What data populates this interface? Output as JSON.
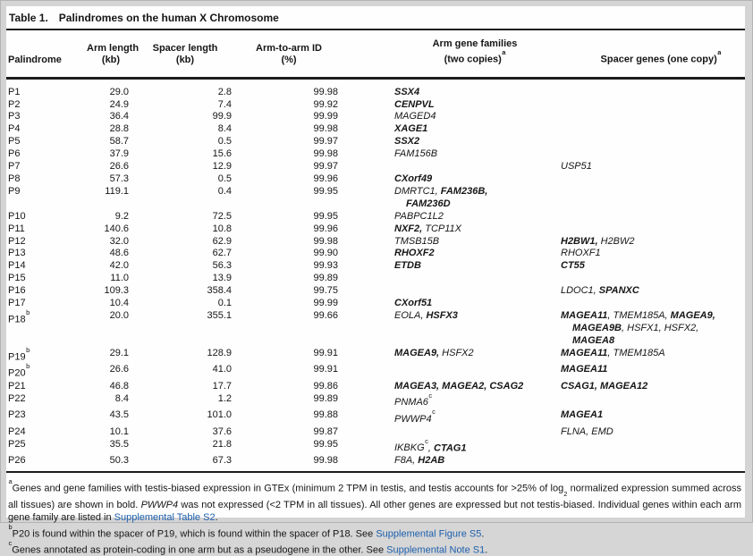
{
  "title": {
    "label": "Table 1.",
    "text": "Palindromes on the human X Chromosome"
  },
  "columns": [
    {
      "id": "palindrome",
      "lines": [
        "Palindrome"
      ],
      "sup": ""
    },
    {
      "id": "arm-length",
      "lines": [
        "Arm length",
        "(kb)"
      ],
      "sup": ""
    },
    {
      "id": "spacer-length",
      "lines": [
        "Spacer length",
        "(kb)"
      ],
      "sup": ""
    },
    {
      "id": "arm-to-arm-id",
      "lines": [
        "Arm-to-arm ID",
        "(%)"
      ],
      "sup": ""
    },
    {
      "id": "arm-gene-families",
      "lines": [
        "Arm gene families",
        "(two copies)"
      ],
      "sup": "a"
    },
    {
      "id": "spacer-genes",
      "lines": [
        "Spacer genes (one copy)"
      ],
      "sup": "a"
    }
  ],
  "rows": [
    {
      "p": "P1",
      "sup": "",
      "arm_kb": "29.0",
      "spacer_kb": "2.8",
      "id_pct": "99.98",
      "arm_genes": [
        [
          {
            "t": "SSX4",
            "b": 1
          }
        ]
      ],
      "spacer_genes": []
    },
    {
      "p": "P2",
      "sup": "",
      "arm_kb": "24.9",
      "spacer_kb": "7.4",
      "id_pct": "99.92",
      "arm_genes": [
        [
          {
            "t": "CENPVL",
            "b": 1
          }
        ]
      ],
      "spacer_genes": []
    },
    {
      "p": "P3",
      "sup": "",
      "arm_kb": "36.4",
      "spacer_kb": "99.9",
      "id_pct": "99.99",
      "arm_genes": [
        [
          {
            "t": "MAGED4"
          }
        ]
      ],
      "spacer_genes": []
    },
    {
      "p": "P4",
      "sup": "",
      "arm_kb": "28.8",
      "spacer_kb": "8.4",
      "id_pct": "99.98",
      "arm_genes": [
        [
          {
            "t": "XAGE1",
            "b": 1
          }
        ]
      ],
      "spacer_genes": []
    },
    {
      "p": "P5",
      "sup": "",
      "arm_kb": "58.7",
      "spacer_kb": "0.5",
      "id_pct": "99.97",
      "arm_genes": [
        [
          {
            "t": "SSX2",
            "b": 1
          }
        ]
      ],
      "spacer_genes": []
    },
    {
      "p": "P6",
      "sup": "",
      "arm_kb": "37.9",
      "spacer_kb": "15.6",
      "id_pct": "99.98",
      "arm_genes": [
        [
          {
            "t": "FAM156B"
          }
        ]
      ],
      "spacer_genes": []
    },
    {
      "p": "P7",
      "sup": "",
      "arm_kb": "26.6",
      "spacer_kb": "12.9",
      "id_pct": "99.97",
      "arm_genes": [],
      "spacer_genes": [
        [
          {
            "t": "USP51"
          }
        ]
      ]
    },
    {
      "p": "P8",
      "sup": "",
      "arm_kb": "57.3",
      "spacer_kb": "0.5",
      "id_pct": "99.96",
      "arm_genes": [
        [
          {
            "t": "CXorf49",
            "b": 1
          }
        ]
      ],
      "spacer_genes": []
    },
    {
      "p": "P9",
      "sup": "",
      "arm_kb": "119.1",
      "spacer_kb": "0.4",
      "id_pct": "99.95",
      "arm_genes": [
        [
          {
            "t": "DMRTC1, "
          },
          {
            "t": "FAM236B,",
            "b": 1
          }
        ],
        [
          {
            "t": "FAM236D",
            "b": 1
          }
        ]
      ],
      "spacer_genes": []
    },
    {
      "p": "P10",
      "sup": "",
      "arm_kb": "9.2",
      "spacer_kb": "72.5",
      "id_pct": "99.95",
      "arm_genes": [
        [
          {
            "t": "PABPC1L2"
          }
        ]
      ],
      "spacer_genes": []
    },
    {
      "p": "P11",
      "sup": "",
      "arm_kb": "140.6",
      "spacer_kb": "10.8",
      "id_pct": "99.96",
      "arm_genes": [
        [
          {
            "t": "NXF2, ",
            "b": 1
          },
          {
            "t": "TCP11X"
          }
        ]
      ],
      "spacer_genes": []
    },
    {
      "p": "P12",
      "sup": "",
      "arm_kb": "32.0",
      "spacer_kb": "62.9",
      "id_pct": "99.98",
      "arm_genes": [
        [
          {
            "t": "TMSB15B"
          }
        ]
      ],
      "spacer_genes": [
        [
          {
            "t": "H2BW1, ",
            "b": 1
          },
          {
            "t": "H2BW2"
          }
        ]
      ]
    },
    {
      "p": "P13",
      "sup": "",
      "arm_kb": "48.6",
      "spacer_kb": "62.7",
      "id_pct": "99.90",
      "arm_genes": [
        [
          {
            "t": "RHOXF2",
            "b": 1
          }
        ]
      ],
      "spacer_genes": [
        [
          {
            "t": "RHOXF1"
          }
        ]
      ]
    },
    {
      "p": "P14",
      "sup": "",
      "arm_kb": "42.0",
      "spacer_kb": "56.3",
      "id_pct": "99.93",
      "arm_genes": [
        [
          {
            "t": "ETDB",
            "b": 1
          }
        ]
      ],
      "spacer_genes": [
        [
          {
            "t": "CT55",
            "b": 1
          }
        ]
      ]
    },
    {
      "p": "P15",
      "sup": "",
      "arm_kb": "11.0",
      "spacer_kb": "13.9",
      "id_pct": "99.89",
      "arm_genes": [],
      "spacer_genes": []
    },
    {
      "p": "P16",
      "sup": "",
      "arm_kb": "109.3",
      "spacer_kb": "358.4",
      "id_pct": "99.75",
      "arm_genes": [],
      "spacer_genes": [
        [
          {
            "t": "LDOC1, "
          },
          {
            "t": "SPANXC",
            "b": 1
          }
        ]
      ]
    },
    {
      "p": "P17",
      "sup": "",
      "arm_kb": "10.4",
      "spacer_kb": "0.1",
      "id_pct": "99.99",
      "arm_genes": [
        [
          {
            "t": "CXorf51",
            "b": 1
          }
        ]
      ],
      "spacer_genes": []
    },
    {
      "p": "P18",
      "sup": "b",
      "arm_kb": "20.0",
      "spacer_kb": "355.1",
      "id_pct": "99.66",
      "arm_genes": [
        [
          {
            "t": "EOLA, "
          },
          {
            "t": "HSFX3",
            "b": 1
          }
        ]
      ],
      "spacer_genes": [
        [
          {
            "t": "MAGEA11",
            "b": 1
          },
          {
            "t": ", TMEM185A, "
          },
          {
            "t": "MAGEA9,",
            "b": 1
          }
        ],
        [
          {
            "t": "MAGEA9B",
            "b": 1
          },
          {
            "t": ", HSFX1, HSFX2,"
          }
        ],
        [
          {
            "t": "MAGEA8",
            "b": 1
          }
        ]
      ]
    },
    {
      "p": "P19",
      "sup": "b",
      "arm_kb": "29.1",
      "spacer_kb": "128.9",
      "id_pct": "99.91",
      "arm_genes": [
        [
          {
            "t": "MAGEA9,",
            "b": 1
          },
          {
            "t": " HSFX2"
          }
        ]
      ],
      "spacer_genes": [
        [
          {
            "t": "MAGEA11",
            "b": 1
          },
          {
            "t": ", TMEM185A"
          }
        ]
      ]
    },
    {
      "p": "P20",
      "sup": "b",
      "arm_kb": "26.6",
      "spacer_kb": "41.0",
      "id_pct": "99.91",
      "arm_genes": [],
      "spacer_genes": [
        [
          {
            "t": "MAGEA11",
            "b": 1
          }
        ]
      ]
    },
    {
      "p": "P21",
      "sup": "",
      "arm_kb": "46.8",
      "spacer_kb": "17.7",
      "id_pct": "99.86",
      "arm_genes": [
        [
          {
            "t": "MAGEA3, MAGEA2, CSAG2",
            "b": 1
          }
        ]
      ],
      "spacer_genes": [
        [
          {
            "t": "CSAG1, MAGEA12",
            "b": 1
          }
        ]
      ]
    },
    {
      "p": "P22",
      "sup": "",
      "arm_kb": "8.4",
      "spacer_kb": "1.2",
      "id_pct": "99.89",
      "arm_genes": [
        [
          {
            "t": "PNMA6",
            "sup": "c"
          }
        ]
      ],
      "spacer_genes": []
    },
    {
      "p": "P23",
      "sup": "",
      "arm_kb": "43.5",
      "spacer_kb": "101.0",
      "id_pct": "99.88",
      "arm_genes": [
        [
          {
            "t": "PWWP4",
            "sup": "c"
          }
        ]
      ],
      "spacer_genes": [
        [
          {
            "t": "MAGEA1",
            "b": 1
          }
        ]
      ]
    },
    {
      "p": "P24",
      "sup": "",
      "arm_kb": "10.1",
      "spacer_kb": "37.6",
      "id_pct": "99.87",
      "arm_genes": [],
      "spacer_genes": [
        [
          {
            "t": "FLNA, EMD"
          }
        ]
      ]
    },
    {
      "p": "P25",
      "sup": "",
      "arm_kb": "35.5",
      "spacer_kb": "21.8",
      "id_pct": "99.95",
      "arm_genes": [
        [
          {
            "t": "IKBKG",
            "sup": "c"
          },
          {
            "t": ", "
          },
          {
            "t": "CTAG1",
            "b": 1
          }
        ]
      ],
      "spacer_genes": []
    },
    {
      "p": "P26",
      "sup": "",
      "arm_kb": "50.3",
      "spacer_kb": "67.3",
      "id_pct": "99.98",
      "arm_genes": [
        [
          {
            "t": "F8A, "
          },
          {
            "t": "H2AB",
            "b": 1
          }
        ]
      ],
      "spacer_genes": []
    }
  ],
  "footnotes": [
    [
      {
        "t": "a",
        "s": "sup"
      },
      {
        "t": "Genes and gene families with testis-biased expression in GTEx (minimum 2 TPM in testis, and testis accounts for >25% of log"
      },
      {
        "t": "2",
        "s": "sub"
      },
      {
        "t": " normalized expression summed across all tissues) are shown in bold. "
      },
      {
        "t": "PWWP4",
        "s": "i"
      },
      {
        "t": " was not expressed (<2 TPM in all tissues). All other genes are expressed but not testis-biased. Individual genes within each arm gene family are listed in "
      },
      {
        "t": "Supplemental Table S2",
        "s": "link"
      },
      {
        "t": "."
      }
    ],
    [
      {
        "t": "b",
        "s": "sup"
      },
      {
        "t": "P20 is found within the spacer of P19, which is found within the spacer of P18. See "
      },
      {
        "t": "Supplemental Figure S5",
        "s": "link"
      },
      {
        "t": "."
      }
    ],
    [
      {
        "t": "c",
        "s": "sup"
      },
      {
        "t": "Genes annotated as protein-coding in one arm but as a pseudogene in the other. See "
      },
      {
        "t": "Supplemental Note S1",
        "s": "link"
      },
      {
        "t": "."
      }
    ]
  ],
  "colors": {
    "link_blue": "#1d5fad",
    "text": "#161616",
    "rule": "#1c1c1c",
    "page_bg": "#fefefe",
    "frame_bg": "#d4d4d4"
  }
}
